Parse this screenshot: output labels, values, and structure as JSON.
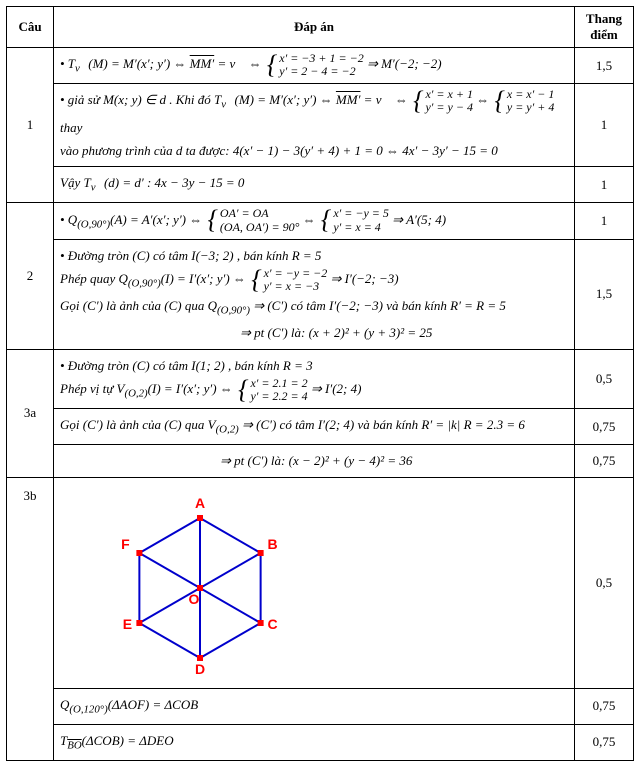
{
  "head": {
    "cau": "Câu",
    "dapan": "Đáp án",
    "thang": "Thang điểm"
  },
  "q1": {
    "num": "1",
    "line1": "• T<sub>v⃗</sub>(M) = M′(x′; y′) ⇔ <span class='overline'>MM′</span> = v⃗ ⇔ { x′ = −3 + 1 = −2 ; y′ = 2 − 4 = −2 } ⇒ M′(−2; −2)",
    "line2": "• giả sử M(x; y) ∈ d . Khi đó T<sub>v⃗</sub>(M) = M′(x′; y′) ⇔ <span class='overline'>MM′</span> = v⃗ ⇔ { x′ = x + 1 ; y′ = y − 4 } ⇔ { x = x′ − 1 ; y = y′ + 4 } thay",
    "line3": "vào phương trình của d ta được: 4(x′ − 1) − 3(y′ + 4) + 1 = 0 ⇔ 4x′ − 3y′ − 15 = 0",
    "line4": "Vậy T<sub>v⃗</sub>(d) = d′ : 4x − 3y − 15 = 0",
    "scores": [
      "1,5",
      "1",
      "1"
    ]
  },
  "q2": {
    "num": "2",
    "line1": "• Q<sub>(O,90°)</sub>(A) = A′(x′; y′) ⇔ { OA′ = OA ; (OA, OA′) = 90° } ⇔ { x′ = −y = 5 ; y′ = x = 4 } ⇒ A′(5; 4)",
    "line2": "• Đường tròn (C) có tâm I(−3; 2) , bán kính R = 5",
    "line3": "Phép quay Q<sub>(O,90°)</sub>(I) = I′(x′; y′) ⇔ { x′ = −y = −2 ; y′ = x = −3 } ⇒ I′(−2; −3)",
    "line4": "Gọi (C′) là ảnh của (C) qua Q<sub>(O,90°)</sub> ⇒ (C′) có tâm I′(−2; −3) và bán kính R′ = R = 5",
    "line5": "⇒ pt (C′) là:  (x + 2)² + (y + 3)² = 25",
    "scores": [
      "1",
      "1,5"
    ]
  },
  "q3a": {
    "num": "3a",
    "line1": "• Đường tròn (C) có tâm I(1; 2) , bán kính R = 3",
    "line2": "Phép vị tự V<sub>(O,2)</sub>(I) = I′(x′; y′) ⇔ { x′ = 2.1 = 2 ; y′ = 2.2 = 4 } ⇒ I′(2; 4)",
    "line3": "Gọi (C′) là ảnh của (C) qua V<sub>(O,2)</sub> ⇒ (C′) có tâm I′(2; 4) và bán kính R′ = |k| R = 2.3 = 6",
    "line4": "⇒ pt (C′) là:  (x − 2)² + (y − 4)² = 36",
    "scores": [
      "0,5",
      "0,75",
      "0,75"
    ]
  },
  "q3b": {
    "num": "3b",
    "hex": {
      "labels": [
        "A",
        "B",
        "C",
        "D",
        "E",
        "F",
        "O"
      ],
      "node_color": "#ff0000",
      "edge_color": "#0000cc",
      "label_color": "#ff0000",
      "label_weight": "bold",
      "line_width": 2,
      "radius": 70
    },
    "line1": "Q<sub>(O,120°)</sub>(ΔAOF) = ΔCOB",
    "line2": "T<sub><span class='overline'>BO</span></sub>(ΔCOB) = ΔDEO",
    "scores": [
      "0,5",
      "0,75",
      "0,75"
    ]
  }
}
